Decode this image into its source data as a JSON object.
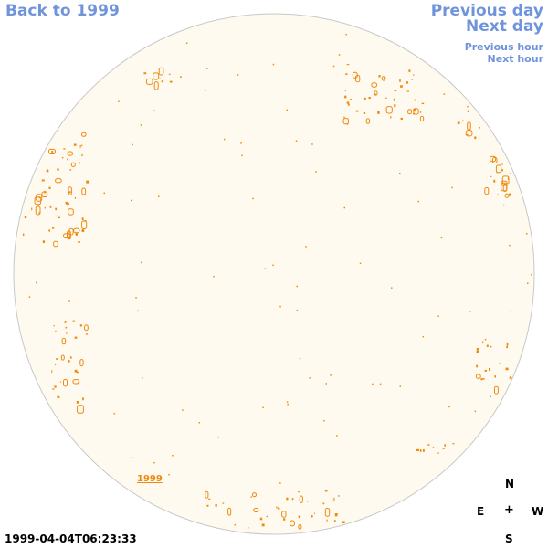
{
  "nav": {
    "back": "Back to 1999",
    "previous_day": "Previous day",
    "next_day": "Next day",
    "previous_hour": "Previous hour",
    "next_hour": "Next hour"
  },
  "disk": {
    "fill_color": "#fffaf0",
    "outline_color": "#c8c8c8",
    "feature_color": "#ee8a10"
  },
  "year_link": "1999",
  "compass": {
    "n": "N",
    "e": "E",
    "center": "+",
    "w": "W",
    "s": "S"
  },
  "timestamp": "1999-04-04T06:23:33"
}
